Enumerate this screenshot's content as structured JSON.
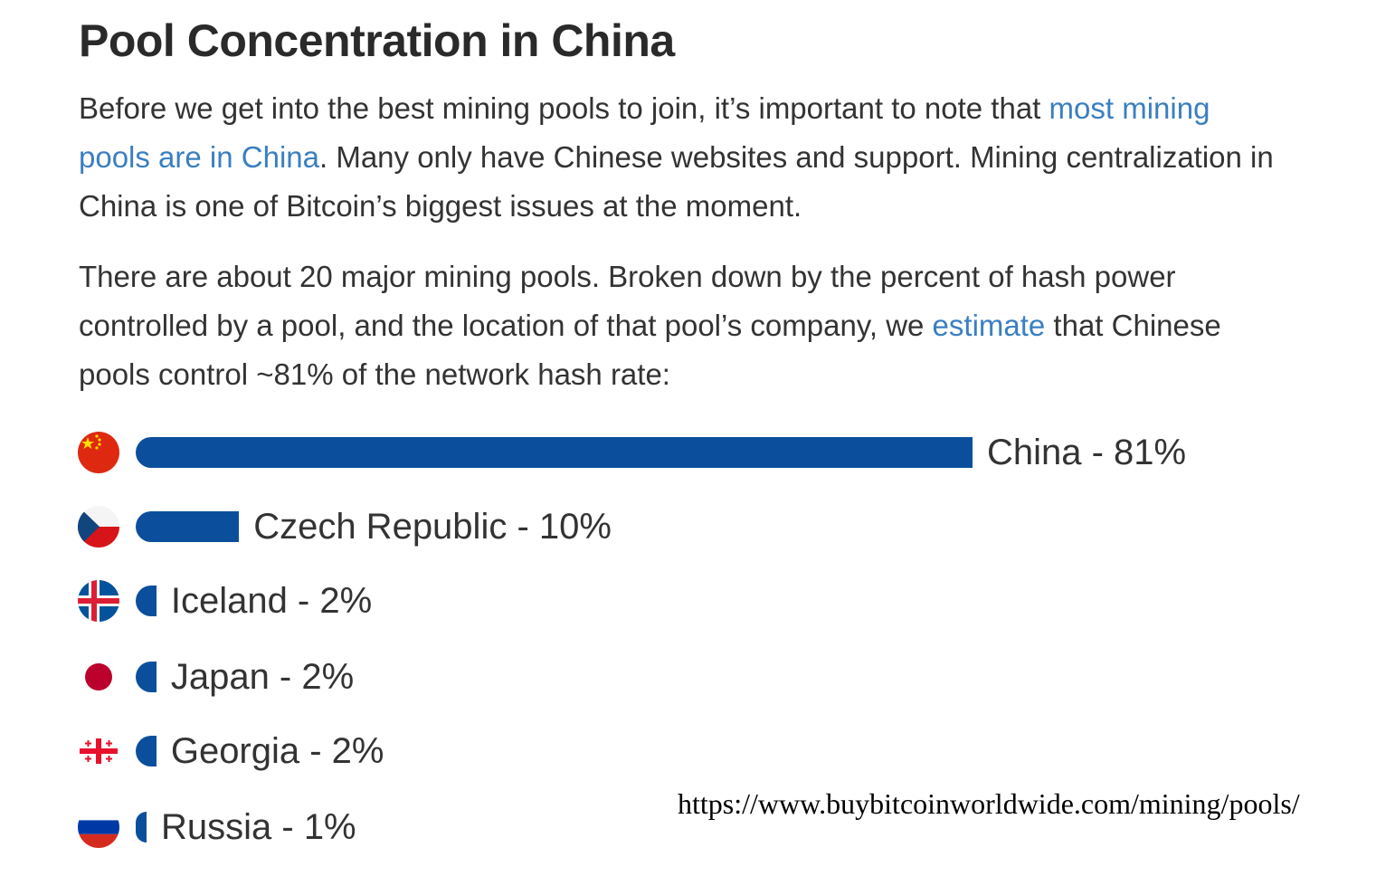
{
  "article": {
    "title": "Pool Concentration in China",
    "p1_pre": "Before we get into the best mining pools to join, it’s important to note that ",
    "p1_link": "most mining pools are in China",
    "p1_post": ". Many only have Chinese websites and support. Mining centralization in China is one of Bitcoin’s biggest issues at the moment.",
    "p2_pre": "There are about 20 major mining pools. Broken down by the percent of hash power controlled by a pool, and the location of that pool’s company, we ",
    "p2_link": "estimate",
    "p2_post": " that Chinese pools control ~81% of the network hash rate:"
  },
  "source_url": "https://www.buybitcoinworldwide.com/mining/pools/",
  "colors": {
    "bar": "#0b4f9c",
    "link": "#3a7fc1",
    "text": "#333333"
  },
  "chart_data": {
    "type": "bar",
    "orientation": "horizontal",
    "categories": [
      "China",
      "Czech Republic",
      "Iceland",
      "Japan",
      "Georgia",
      "Russia"
    ],
    "values": [
      81,
      10,
      2,
      2,
      2,
      1
    ],
    "labels": [
      "China - 81%",
      "Czech Republic - 10%",
      "Iceland - 2%",
      "Japan - 2%",
      "Georgia - 2%",
      "Russia - 1%"
    ],
    "flags": [
      "china-flag-icon",
      "czech-flag-icon",
      "iceland-flag-icon",
      "japan-flag-icon",
      "georgia-flag-icon",
      "russia-flag-icon"
    ],
    "unit": "%",
    "xlim": [
      0,
      81
    ]
  }
}
